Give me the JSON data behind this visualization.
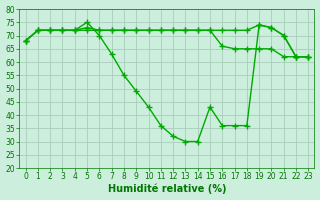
{
  "x": [
    0,
    1,
    2,
    3,
    4,
    5,
    6,
    7,
    8,
    9,
    10,
    11,
    12,
    13,
    14,
    15,
    16,
    17,
    18,
    19,
    20,
    21,
    22,
    23
  ],
  "line1": [
    68,
    72,
    72,
    72,
    72,
    72,
    72,
    72,
    72,
    72,
    72,
    72,
    72,
    72,
    72,
    72,
    66,
    65,
    65,
    65,
    65,
    62,
    62,
    62
  ],
  "line2": [
    68,
    72,
    72,
    72,
    72,
    73,
    72,
    72,
    72,
    72,
    72,
    72,
    72,
    72,
    72,
    72,
    72,
    72,
    72,
    74,
    73,
    70,
    62,
    62
  ],
  "line3": [
    68,
    72,
    72,
    72,
    72,
    75,
    70,
    63,
    55,
    49,
    43,
    36,
    32,
    30,
    30,
    43,
    36,
    36,
    36,
    74,
    73,
    70,
    62,
    62
  ],
  "bg_color": "#cceedd",
  "grid_color": "#aaccbb",
  "line_color": "#00aa00",
  "marker": "+",
  "marker_size": 4,
  "linewidth": 1.0,
  "xlabel": "Humidité relative (%)",
  "xlim": [
    -0.5,
    23.5
  ],
  "ylim": [
    20,
    80
  ],
  "yticks": [
    20,
    25,
    30,
    35,
    40,
    45,
    50,
    55,
    60,
    65,
    70,
    75,
    80
  ],
  "xticks": [
    0,
    1,
    2,
    3,
    4,
    5,
    6,
    7,
    8,
    9,
    10,
    11,
    12,
    13,
    14,
    15,
    16,
    17,
    18,
    19,
    20,
    21,
    22,
    23
  ],
  "xlabel_fontsize": 7,
  "tick_fontsize": 5.5,
  "xlabel_color": "#007700",
  "tick_color": "#007700",
  "spine_color": "#007700"
}
